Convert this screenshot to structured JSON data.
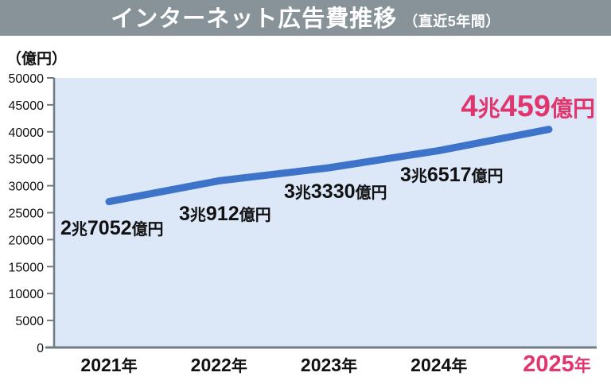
{
  "header": {
    "title": "インターネット広告費推移",
    "subtitle": "（直近5年間）"
  },
  "colors": {
    "header_bg": "#879399",
    "title_text": "#ffffff",
    "plot_bg": "#dce7f8",
    "line": "#3d73c9",
    "highlight": "#e1356e",
    "text": "#111111",
    "axis": "#6f7b85"
  },
  "chart_data": {
    "type": "line",
    "title": "インターネット広告費推移（直近5年間）",
    "xlabel": "",
    "ylabel": "（億円）",
    "ylim": [
      0,
      50000
    ],
    "ytick_step": 5000,
    "yticks": [
      0,
      5000,
      10000,
      15000,
      20000,
      25000,
      30000,
      35000,
      40000,
      45000,
      50000
    ],
    "grid": false,
    "legend": "none",
    "categories": [
      "2021年",
      "2022年",
      "2023年",
      "2024年",
      "2025年"
    ],
    "values": [
      27052,
      30912,
      33330,
      36517,
      40459
    ],
    "units": {
      "trillion": "兆",
      "hundred_million": "億円"
    },
    "year_suffix": "年",
    "points": [
      {
        "year_digits": "2021",
        "value": 27052,
        "label": "2兆7052億円",
        "cho": "2",
        "oku": "7052",
        "highlight": false
      },
      {
        "year_digits": "2022",
        "value": 30912,
        "label": "3兆912億円",
        "cho": "3",
        "oku": "912",
        "highlight": false
      },
      {
        "year_digits": "2023",
        "value": 33330,
        "label": "3兆3330億円",
        "cho": "3",
        "oku": "3330",
        "highlight": false
      },
      {
        "year_digits": "2024",
        "value": 36517,
        "label": "3兆6517億円",
        "cho": "3",
        "oku": "6517",
        "highlight": false
      },
      {
        "year_digits": "2025",
        "value": 40459,
        "label": "4兆459億円",
        "cho": "4",
        "oku": "459",
        "highlight": true
      }
    ]
  }
}
